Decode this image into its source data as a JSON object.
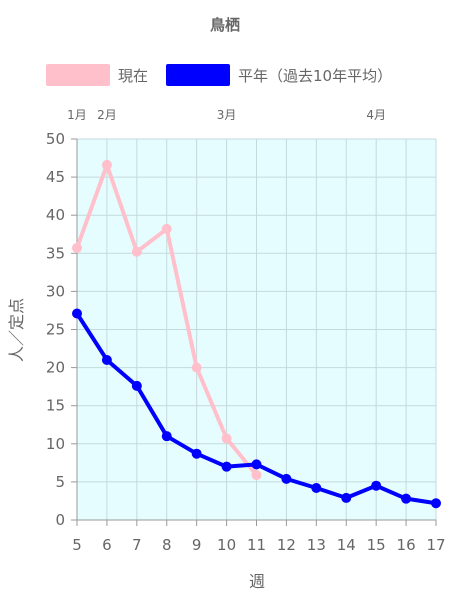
{
  "chart_data": {
    "type": "line",
    "title": "鳥栖",
    "xlabel": "週",
    "ylabel": "人／定点",
    "x": [
      5,
      6,
      7,
      8,
      9,
      10,
      11,
      12,
      13,
      14,
      15,
      16,
      17
    ],
    "xlim": [
      5,
      17
    ],
    "ylim": [
      0,
      50
    ],
    "y_ticks": [
      0,
      5,
      10,
      15,
      20,
      25,
      30,
      35,
      40,
      45,
      50
    ],
    "month_labels": [
      {
        "label": "1月",
        "week": 5
      },
      {
        "label": "2月",
        "week": 6
      },
      {
        "label": "3月",
        "week": 10
      },
      {
        "label": "4月",
        "week": 15
      }
    ],
    "legend_position": "top",
    "grid": true,
    "plot_background": "#e6fdff",
    "series": [
      {
        "name": "現在",
        "color": "#ffc0cb",
        "values": [
          35.7,
          46.6,
          35.2,
          38.2,
          20.0,
          10.7,
          5.9,
          null,
          null,
          null,
          null,
          null,
          null
        ]
      },
      {
        "name": "平年（過去10年平均）",
        "color": "#0000ff",
        "values": [
          27.1,
          21.0,
          17.6,
          11.0,
          8.7,
          7.0,
          7.3,
          5.4,
          4.2,
          2.9,
          4.5,
          2.8,
          2.2
        ]
      }
    ]
  }
}
